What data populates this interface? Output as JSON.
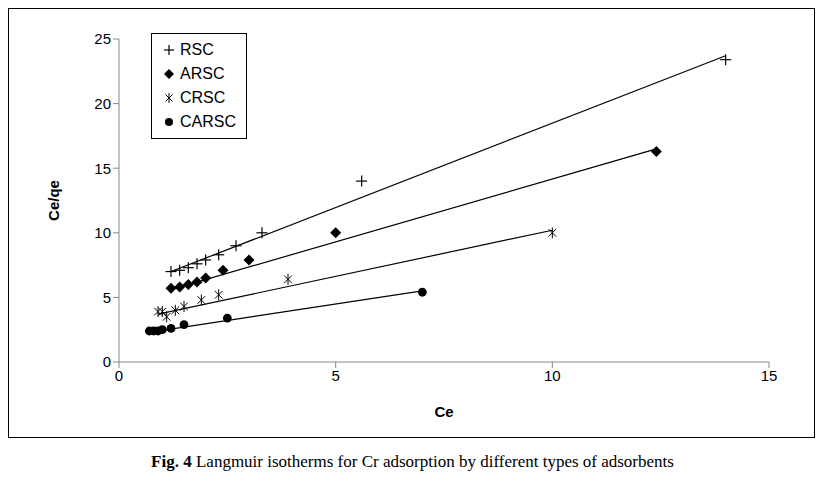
{
  "chart_data": {
    "type": "scatter",
    "figure_label": "Fig. 4",
    "title": "Langmuir isotherms for Cr adsorption by different types of adsorbents",
    "x_label": "Ce",
    "y_label": "Ce/qe",
    "xlim": [
      0,
      15
    ],
    "xticks": [
      0,
      5,
      10,
      15
    ],
    "ylim": [
      0,
      25
    ],
    "yticks": [
      0,
      5,
      10,
      15,
      20,
      25
    ],
    "grid": false,
    "legend": "upper left",
    "series": [
      {
        "name": "RSC",
        "color": "#000000",
        "marker": "plus",
        "x": [
          1.2,
          1.4,
          1.6,
          1.8,
          2.0,
          2.3,
          2.7,
          3.3,
          5.6,
          14.0
        ],
        "y": [
          7.0,
          7.1,
          7.3,
          7.6,
          7.9,
          8.3,
          9.0,
          10.0,
          14.0,
          23.4
        ],
        "fit": {
          "x": [
            1.2,
            14.0
          ],
          "y": [
            7.0,
            23.7
          ]
        }
      },
      {
        "name": "ARSC",
        "color": "#000000",
        "marker": "diamond",
        "x": [
          1.2,
          1.4,
          1.6,
          1.8,
          2.0,
          2.4,
          3.0,
          5.0,
          12.4
        ],
        "y": [
          5.7,
          5.8,
          6.0,
          6.2,
          6.5,
          7.1,
          7.9,
          10.0,
          16.3
        ],
        "fit": {
          "x": [
            1.2,
            12.4
          ],
          "y": [
            5.6,
            16.5
          ]
        }
      },
      {
        "name": "CRSC",
        "color": "#000000",
        "marker": "asterisk",
        "x": [
          0.9,
          1.0,
          1.1,
          1.3,
          1.5,
          1.9,
          2.3,
          3.9,
          10.0
        ],
        "y": [
          3.9,
          3.9,
          3.5,
          4.0,
          4.3,
          4.8,
          5.2,
          6.4,
          10.0
        ],
        "fit": {
          "x": [
            0.9,
            10.0
          ],
          "y": [
            3.7,
            10.2
          ]
        }
      },
      {
        "name": "CARSC",
        "color": "#000000",
        "marker": "circle",
        "x": [
          0.7,
          0.8,
          0.9,
          1.0,
          1.2,
          1.5,
          2.5,
          7.0
        ],
        "y": [
          2.4,
          2.4,
          2.4,
          2.5,
          2.6,
          2.9,
          3.4,
          5.4
        ],
        "fit": {
          "x": [
            0.7,
            7.0
          ],
          "y": [
            2.3,
            5.5
          ]
        }
      }
    ]
  }
}
